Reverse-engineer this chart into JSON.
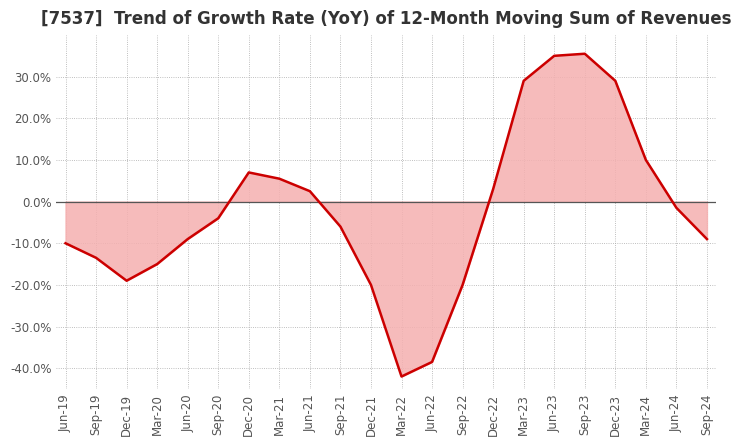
{
  "title": "[7537]  Trend of Growth Rate (YoY) of 12-Month Moving Sum of Revenues",
  "x_labels": [
    "Jun-19",
    "Sep-19",
    "Dec-19",
    "Mar-20",
    "Jun-20",
    "Sep-20",
    "Dec-20",
    "Mar-21",
    "Jun-21",
    "Sep-21",
    "Dec-21",
    "Mar-22",
    "Jun-22",
    "Sep-22",
    "Dec-22",
    "Mar-23",
    "Jun-23",
    "Sep-23",
    "Dec-23",
    "Mar-24",
    "Jun-24",
    "Sep-24"
  ],
  "y_values": [
    -10.0,
    -13.5,
    -19.0,
    -15.0,
    -9.0,
    -4.0,
    7.0,
    5.5,
    2.5,
    -6.0,
    -20.0,
    -42.0,
    -38.5,
    -20.0,
    3.0,
    29.0,
    35.0,
    35.5,
    29.0,
    10.0,
    -1.5,
    -9.0
  ],
  "line_color": "#cc0000",
  "fill_color": "#f5b0b0",
  "background_color": "#ffffff",
  "grid_color": "#aaaaaa",
  "zero_line_color": "#555555",
  "title_color": "#333333",
  "ylim": [
    -45,
    40
  ],
  "yticks": [
    -40,
    -30,
    -20,
    -10,
    0,
    10,
    20,
    30
  ],
  "title_fontsize": 12,
  "tick_fontsize": 8.5,
  "figsize": [
    7.2,
    4.4
  ],
  "dpi": 100
}
